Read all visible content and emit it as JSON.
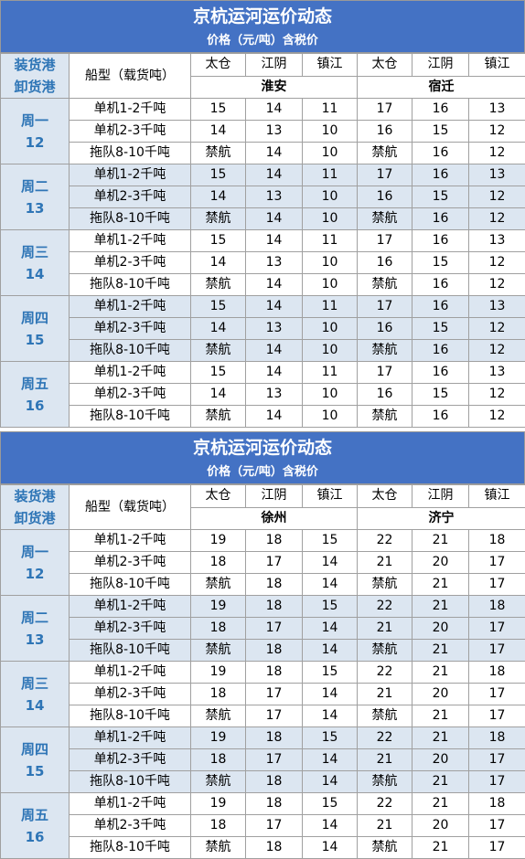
{
  "tables": [
    {
      "title": "京杭运河运价动态",
      "subtitle": "价格（元/吨）含税价",
      "header": {
        "load_port": "装货港",
        "unload_port": "卸货港",
        "ship_type": "船型（载货吨）",
        "ports": [
          "太仓",
          "江阴",
          "镇江",
          "太仓",
          "江阴",
          "镇江"
        ],
        "destinations": [
          "淮安",
          "宿迁"
        ]
      },
      "groups": [
        {
          "day": "周一",
          "date": 12,
          "rows": [
            [
              "单机1-2千吨",
              15,
              14,
              11,
              17,
              16,
              13
            ],
            [
              "单机2-3千吨",
              14,
              13,
              10,
              16,
              15,
              12
            ],
            [
              "拖队8-10千吨",
              "禁航",
              14,
              10,
              "禁航",
              16,
              12
            ]
          ]
        },
        {
          "day": "周二",
          "date": 13,
          "rows": [
            [
              "单机1-2千吨",
              15,
              14,
              11,
              17,
              16,
              13
            ],
            [
              "单机2-3千吨",
              14,
              13,
              10,
              16,
              15,
              12
            ],
            [
              "拖队8-10千吨",
              "禁航",
              14,
              10,
              "禁航",
              16,
              12
            ]
          ]
        },
        {
          "day": "周三",
          "date": 14,
          "rows": [
            [
              "单机1-2千吨",
              15,
              14,
              11,
              17,
              16,
              13
            ],
            [
              "单机2-3千吨",
              14,
              13,
              10,
              16,
              15,
              12
            ],
            [
              "拖队8-10千吨",
              "禁航",
              14,
              10,
              "禁航",
              16,
              12
            ]
          ]
        },
        {
          "day": "周四",
          "date": 15,
          "rows": [
            [
              "单机1-2千吨",
              15,
              14,
              11,
              17,
              16,
              13
            ],
            [
              "单机2-3千吨",
              14,
              13,
              10,
              16,
              15,
              12
            ],
            [
              "拖队8-10千吨",
              "禁航",
              14,
              10,
              "禁航",
              16,
              12
            ]
          ]
        },
        {
          "day": "周五",
          "date": 16,
          "rows": [
            [
              "单机1-2千吨",
              15,
              14,
              11,
              17,
              16,
              13
            ],
            [
              "单机2-3千吨",
              14,
              13,
              10,
              16,
              15,
              12
            ],
            [
              "拖队8-10千吨",
              "禁航",
              14,
              10,
              "禁航",
              16,
              12
            ]
          ]
        }
      ]
    },
    {
      "title": "京杭运河运价动态",
      "subtitle": "价格（元/吨）含税价",
      "header": {
        "load_port": "装货港",
        "unload_port": "卸货港",
        "ship_type": "船型（载货吨）",
        "ports": [
          "太仓",
          "江阴",
          "镇江",
          "太仓",
          "江阴",
          "镇江"
        ],
        "destinations": [
          "徐州",
          "济宁"
        ]
      },
      "groups": [
        {
          "day": "周一",
          "date": 12,
          "rows": [
            [
              "单机1-2千吨",
              19,
              18,
              15,
              22,
              21,
              18
            ],
            [
              "单机2-3千吨",
              18,
              17,
              14,
              21,
              20,
              17
            ],
            [
              "拖队8-10千吨",
              "禁航",
              18,
              14,
              "禁航",
              21,
              17
            ]
          ]
        },
        {
          "day": "周二",
          "date": 13,
          "rows": [
            [
              "单机1-2千吨",
              19,
              18,
              15,
              22,
              21,
              18
            ],
            [
              "单机2-3千吨",
              18,
              17,
              14,
              21,
              20,
              17
            ],
            [
              "拖队8-10千吨",
              "禁航",
              18,
              14,
              "禁航",
              21,
              17
            ]
          ]
        },
        {
          "day": "周三",
          "date": 14,
          "rows": [
            [
              "单机1-2千吨",
              19,
              18,
              15,
              22,
              21,
              18
            ],
            [
              "单机2-3千吨",
              18,
              17,
              14,
              21,
              20,
              17
            ],
            [
              "拖队8-10千吨",
              "禁航",
              17,
              14,
              "禁航",
              21,
              17
            ]
          ]
        },
        {
          "day": "周四",
          "date": 15,
          "rows": [
            [
              "单机1-2千吨",
              19,
              18,
              15,
              22,
              21,
              18
            ],
            [
              "单机2-3千吨",
              18,
              17,
              14,
              21,
              20,
              17
            ],
            [
              "拖队8-10千吨",
              "禁航",
              18,
              14,
              "禁航",
              21,
              17
            ]
          ]
        },
        {
          "day": "周五",
          "date": 16,
          "rows": [
            [
              "单机1-2千吨",
              19,
              18,
              15,
              22,
              21,
              18
            ],
            [
              "单机2-3千吨",
              18,
              17,
              14,
              21,
              20,
              17
            ],
            [
              "拖队8-10千吨",
              "禁航",
              18,
              14,
              "禁航",
              21,
              17
            ]
          ]
        }
      ]
    }
  ]
}
